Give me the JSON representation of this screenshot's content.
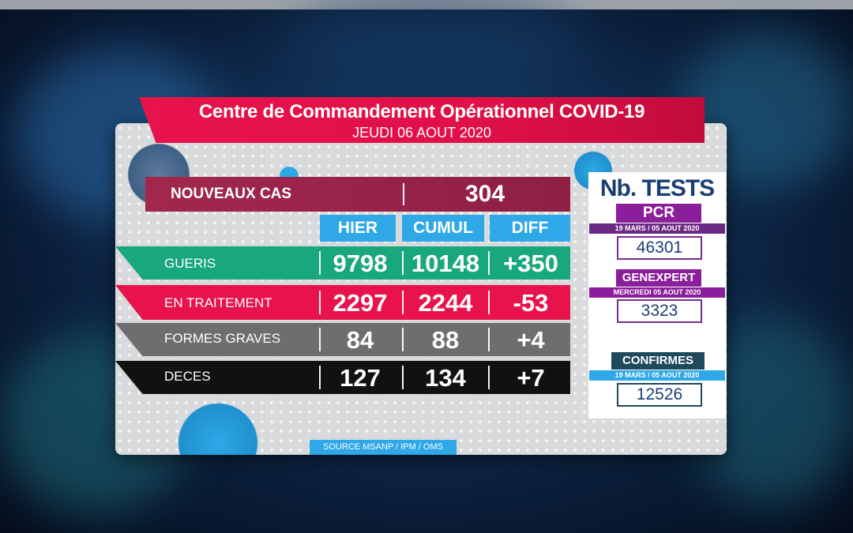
{
  "header": {
    "title": "Centre de Commandement Opérationnel COVID-19",
    "date": "JEUDI 06 AOUT 2020"
  },
  "nouveaux_cas": {
    "label": "NOUVEAUX CAS",
    "value": "304"
  },
  "columns": {
    "hier": "HIER",
    "cumul": "CUMUL",
    "diff": "DIFF"
  },
  "rows": [
    {
      "label": "GUERIS",
      "hier": "9798",
      "cumul": "10148",
      "diff": "+350"
    },
    {
      "label": "EN TRAITEMENT",
      "hier": "2297",
      "cumul": "2244",
      "diff": "-53"
    },
    {
      "label": "FORMES GRAVES",
      "hier": "84",
      "cumul": "88",
      "diff": "+4"
    },
    {
      "label": "DECES",
      "hier": "127",
      "cumul": "134",
      "diff": "+7"
    }
  ],
  "source": "SOURCE MSANP / IPM / OMS",
  "tests": {
    "title": "Nb. TESTS",
    "pcr": {
      "label": "PCR",
      "period": "19 MARS  /  05 AOUT 2020",
      "value": "46301"
    },
    "genexpert": {
      "label": "GENEXPERT",
      "period": "MERCREDI  05 AOUT 2020",
      "value": "3323"
    },
    "confirmes": {
      "label": "CONFIRMES",
      "period": "19 MARS  /  05 AOUT 2020",
      "value": "12526"
    }
  },
  "colors": {
    "red": "#e8124c",
    "green": "#19a77c",
    "grey": "#6e6e70",
    "black": "#111111",
    "blue": "#2ea8e6",
    "maroon": "#a2274d",
    "purple": "#8b1e9a",
    "navy": "#1a3e73",
    "teal": "#1f4a5c"
  }
}
